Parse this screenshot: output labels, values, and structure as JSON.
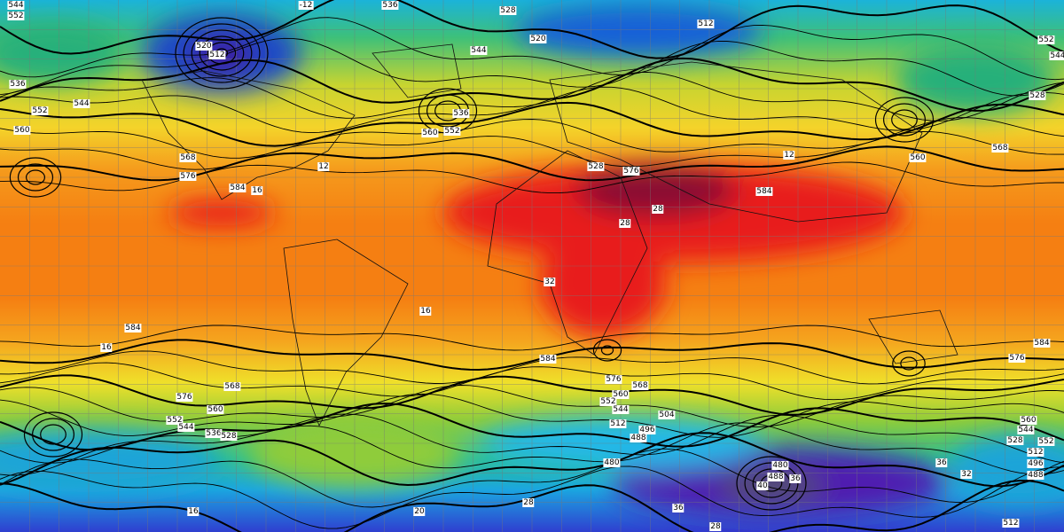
{
  "contour_labels": [
    "544",
    "552",
    "-12",
    "536",
    "528",
    "520",
    "544",
    "512",
    "520",
    "512",
    "536",
    "552",
    "544",
    "560",
    "560",
    "552",
    "536",
    "568",
    "576",
    "584",
    "16",
    "12",
    "528",
    "576",
    "584",
    "12",
    "552",
    "544",
    "528",
    "568",
    "560",
    "28",
    "28",
    "32",
    "16",
    "584",
    "16",
    "584",
    "576",
    "584",
    "576",
    "568",
    "576",
    "568",
    "560",
    "552",
    "544",
    "536",
    "528",
    "560",
    "552",
    "544",
    "512",
    "504",
    "496",
    "488",
    "480",
    "560",
    "544",
    "528",
    "552",
    "512",
    "496",
    "488",
    "480",
    "488",
    "40",
    "36",
    "36",
    "32",
    "28",
    "36",
    "20",
    "16",
    "28",
    "512"
  ]
}
